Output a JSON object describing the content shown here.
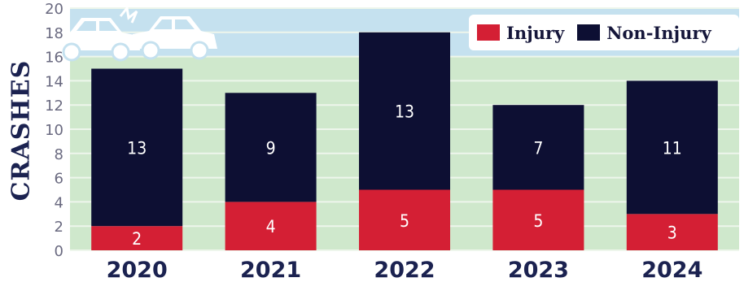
{
  "chart_data": {
    "type": "bar",
    "stacked": true,
    "categories": [
      "2020",
      "2021",
      "2022",
      "2023",
      "2024"
    ],
    "series": [
      {
        "name": "Injury",
        "values": [
          2,
          4,
          5,
          5,
          3
        ],
        "color": "#d41f34"
      },
      {
        "name": "Non-Injury",
        "values": [
          13,
          9,
          13,
          7,
          11
        ],
        "color": "#0d0f33"
      }
    ],
    "title": "",
    "xlabel": "",
    "ylabel": "CRASHES",
    "ylim": [
      0,
      20
    ],
    "yticks": [
      "0",
      "2",
      "4",
      "6",
      "8",
      "10",
      "12",
      "14",
      "16",
      "18",
      "20"
    ],
    "data_labels": true,
    "legend": "top-right",
    "background": {
      "sky": "#c5e1ef",
      "ground": "#cfe8cc",
      "grid": "#eef6ec"
    },
    "decoration": "car-crash-illustration"
  }
}
